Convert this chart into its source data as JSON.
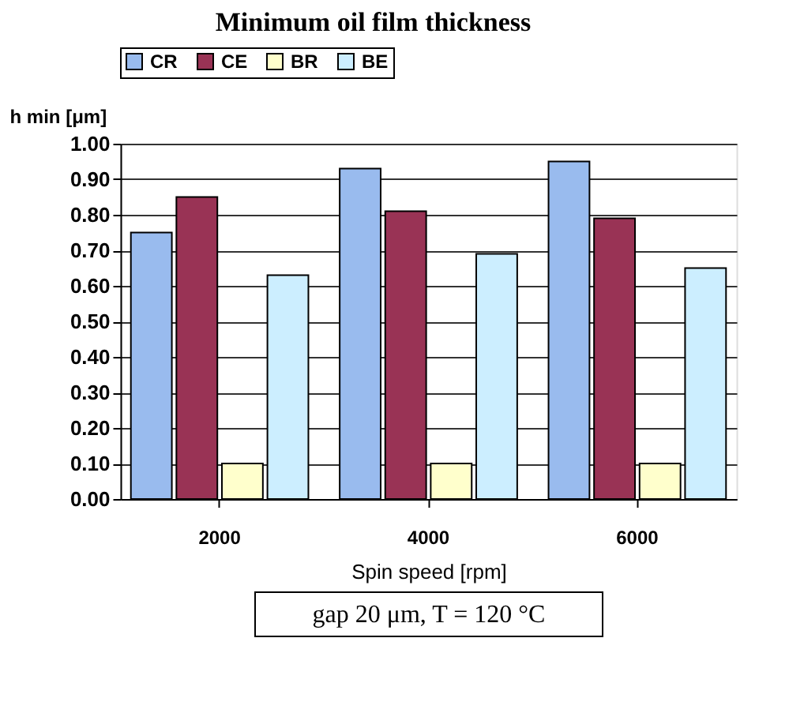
{
  "chart_data": {
    "type": "bar",
    "title": "Minimum oil film thickness",
    "ylabel": "h min [μm]",
    "xlabel": "Spin speed  [rpm]",
    "categories": [
      "2000",
      "4000",
      "6000"
    ],
    "series": [
      {
        "name": "CR",
        "color": "#99bbee",
        "values": [
          0.75,
          0.93,
          0.95
        ]
      },
      {
        "name": "CE",
        "color": "#993355",
        "values": [
          0.85,
          0.81,
          0.79
        ]
      },
      {
        "name": "BR",
        "color": "#ffffcc",
        "values": [
          0.1,
          0.1,
          0.1
        ]
      },
      {
        "name": "BE",
        "color": "#cceeff",
        "values": [
          0.63,
          0.69,
          0.65
        ]
      }
    ],
    "ylim": [
      0,
      1
    ],
    "yticks": [
      {
        "value": 0,
        "label": "0.00"
      },
      {
        "value": 0.1,
        "label": "0.10"
      },
      {
        "value": 0.2,
        "label": "0.20"
      },
      {
        "value": 0.3,
        "label": "0.30"
      },
      {
        "value": 0.4,
        "label": "0.40"
      },
      {
        "value": 0.5,
        "label": "0.50"
      },
      {
        "value": 0.6,
        "label": "0.60"
      },
      {
        "value": 0.7,
        "label": "0.70"
      },
      {
        "value": 0.8,
        "label": "0.80"
      },
      {
        "value": 0.9,
        "label": "0.90"
      },
      {
        "value": 1,
        "label": "1.00"
      }
    ],
    "grid": "y",
    "legend": "top",
    "annotations": [
      "gap 20 μm, T = 120 °C"
    ]
  }
}
